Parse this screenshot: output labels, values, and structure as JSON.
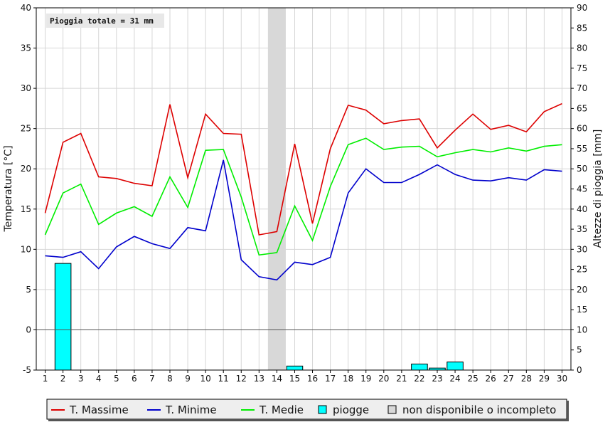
{
  "chart_data": {
    "type": "line",
    "annotation": "Pioggia totale = 31 mm",
    "ylabel": "Temperatura [°C]",
    "y2label": "Altezze di pioggia [mm]",
    "ylim": [
      -5,
      40
    ],
    "y2lim": [
      0,
      90
    ],
    "y_ticks": [
      -5,
      0,
      5,
      10,
      15,
      20,
      25,
      30,
      35,
      40
    ],
    "y2_ticks": [
      0,
      5,
      10,
      15,
      20,
      25,
      30,
      35,
      40,
      45,
      50,
      55,
      60,
      65,
      70,
      75,
      80,
      85,
      90
    ],
    "x": [
      1,
      2,
      3,
      4,
      5,
      6,
      7,
      8,
      9,
      10,
      11,
      12,
      13,
      14,
      15,
      16,
      17,
      18,
      19,
      20,
      21,
      22,
      23,
      24,
      25,
      26,
      27,
      28,
      29,
      30
    ],
    "grid": true,
    "legend_position": "bottom",
    "series": [
      {
        "name": "T. Massime",
        "color": "#dd0000",
        "values": [
          14.5,
          23.3,
          24.4,
          19.0,
          18.8,
          18.2,
          17.9,
          28.0,
          18.9,
          26.8,
          24.4,
          24.3,
          11.8,
          12.2,
          23.1,
          13.2,
          22.5,
          27.9,
          27.3,
          25.6,
          26.0,
          26.2,
          22.6,
          24.8,
          26.8,
          24.9,
          25.4,
          24.6,
          27.1,
          28.1
        ]
      },
      {
        "name": "T. Minime",
        "color": "#0000cc",
        "values": [
          9.2,
          9.0,
          9.7,
          7.6,
          10.3,
          11.6,
          10.7,
          10.1,
          12.7,
          12.3,
          21.1,
          8.7,
          6.6,
          6.2,
          8.4,
          8.1,
          9.0,
          17.0,
          20.0,
          18.3,
          18.3,
          19.3,
          20.5,
          19.3,
          18.6,
          18.5,
          18.9,
          18.6,
          19.9,
          19.7
        ]
      },
      {
        "name": "T. Medie",
        "color": "#00ee00",
        "values": [
          11.8,
          17.0,
          18.1,
          13.1,
          14.5,
          15.3,
          14.1,
          19.0,
          15.2,
          22.3,
          22.4,
          16.5,
          9.3,
          9.6,
          15.4,
          11.1,
          17.8,
          23.0,
          23.8,
          22.4,
          22.7,
          22.8,
          21.5,
          22.0,
          22.4,
          22.1,
          22.6,
          22.2,
          22.8,
          23.0
        ]
      }
    ],
    "rain": {
      "name": "piogge",
      "color": "#00ffff",
      "unit": "mm",
      "values": [
        0,
        26.5,
        0,
        0,
        0,
        0,
        0,
        0,
        0,
        0,
        0,
        0,
        0,
        0,
        1,
        0,
        0,
        0,
        0,
        0,
        0,
        1.5,
        0.5,
        2,
        0,
        0,
        0,
        0,
        0,
        0
      ]
    },
    "unavailable": {
      "name": "non disponibile o incompleto",
      "color": "#d8d8d8",
      "days": [
        14
      ]
    }
  },
  "legend": [
    {
      "label": "T. Massime",
      "kind": "line",
      "color": "#dd0000"
    },
    {
      "label": "T. Minime",
      "kind": "line",
      "color": "#0000cc"
    },
    {
      "label": "T. Medie",
      "kind": "line",
      "color": "#00ee00"
    },
    {
      "label": "piogge",
      "kind": "box",
      "color": "#00ffff"
    },
    {
      "label": "non disponibile o incompleto",
      "kind": "box",
      "color": "#d8d8d8"
    }
  ]
}
